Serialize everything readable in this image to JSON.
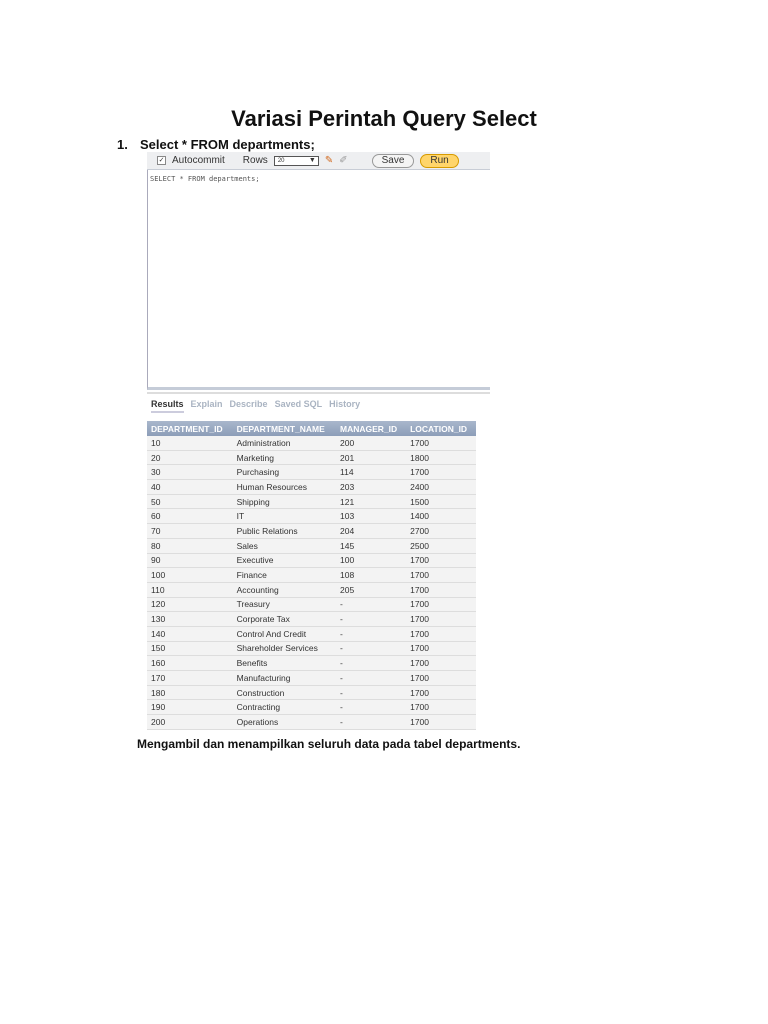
{
  "title": "Variasi Perintah Query Select",
  "item": {
    "number": "1.",
    "text": "Select * FROM departments;"
  },
  "toolbar": {
    "autocommit": "Autocommit",
    "rows_label": "Rows",
    "rows_value": "20",
    "save": "Save",
    "run": "Run"
  },
  "editor": {
    "sql": "SELECT * FROM departments;"
  },
  "tabs": [
    "Results",
    "Explain",
    "Describe",
    "Saved SQL",
    "History"
  ],
  "table": {
    "headers": [
      "DEPARTMENT_ID",
      "DEPARTMENT_NAME",
      "MANAGER_ID",
      "LOCATION_ID"
    ],
    "rows": [
      [
        "10",
        "Administration",
        "200",
        "1700"
      ],
      [
        "20",
        "Marketing",
        "201",
        "1800"
      ],
      [
        "30",
        "Purchasing",
        "114",
        "1700"
      ],
      [
        "40",
        "Human Resources",
        "203",
        "2400"
      ],
      [
        "50",
        "Shipping",
        "121",
        "1500"
      ],
      [
        "60",
        "IT",
        "103",
        "1400"
      ],
      [
        "70",
        "Public Relations",
        "204",
        "2700"
      ],
      [
        "80",
        "Sales",
        "145",
        "2500"
      ],
      [
        "90",
        "Executive",
        "100",
        "1700"
      ],
      [
        "100",
        "Finance",
        "108",
        "1700"
      ],
      [
        "110",
        "Accounting",
        "205",
        "1700"
      ],
      [
        "120",
        "Treasury",
        "-",
        "1700"
      ],
      [
        "130",
        "Corporate Tax",
        "-",
        "1700"
      ],
      [
        "140",
        "Control And Credit",
        "-",
        "1700"
      ],
      [
        "150",
        "Shareholder Services",
        "-",
        "1700"
      ],
      [
        "160",
        "Benefits",
        "-",
        "1700"
      ],
      [
        "170",
        "Manufacturing",
        "-",
        "1700"
      ],
      [
        "180",
        "Construction",
        "-",
        "1700"
      ],
      [
        "190",
        "Contracting",
        "-",
        "1700"
      ],
      [
        "200",
        "Operations",
        "-",
        "1700"
      ]
    ]
  },
  "caption": "Mengambil dan menampilkan seluruh data pada tabel departments."
}
